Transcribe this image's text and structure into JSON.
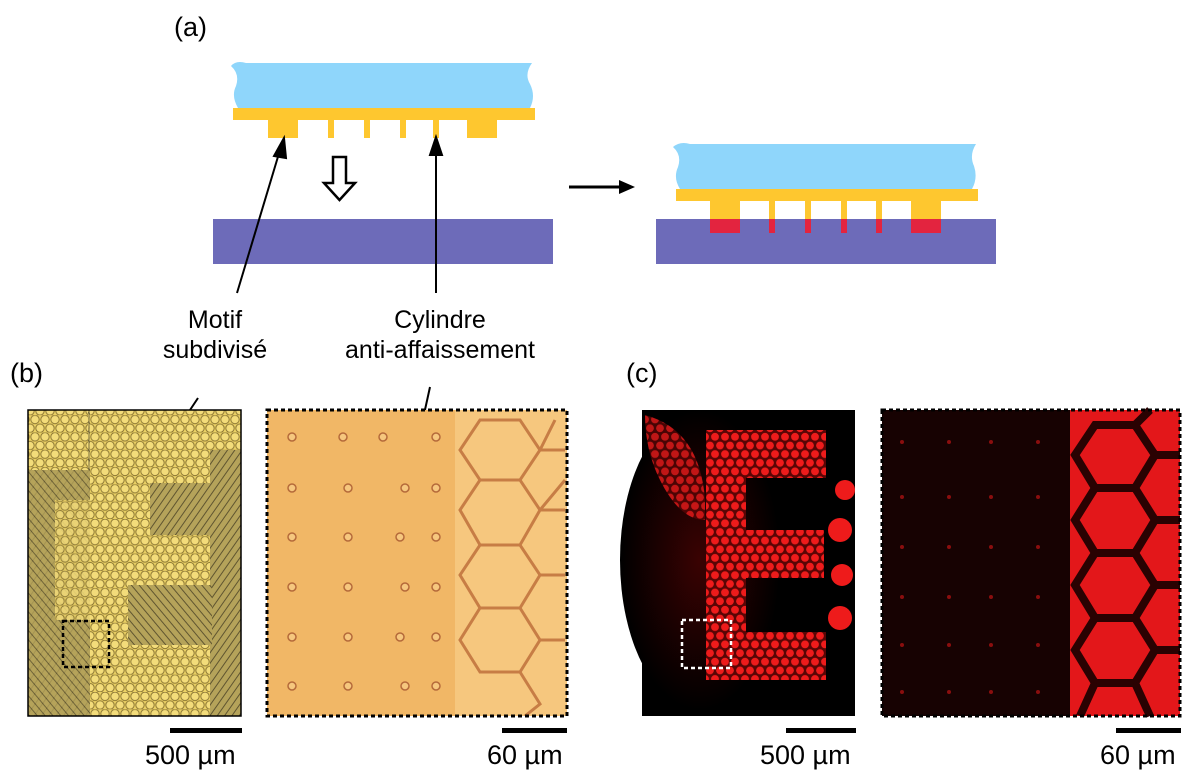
{
  "panels": {
    "a": {
      "label": "(a)"
    },
    "b": {
      "label": "(b)"
    },
    "c": {
      "label": "(c)"
    }
  },
  "annotations": {
    "motif": {
      "line1": "Motif",
      "line2": "subdivisé"
    },
    "cylindre": {
      "line1": "Cylindre",
      "line2": "anti-affaissement"
    }
  },
  "scalebars": {
    "b_left": "500 µm",
    "b_right": "60 µm",
    "c_left": "500 µm",
    "c_right": "60 µm"
  },
  "colors": {
    "glass": "#8fd6fb",
    "pdms": "#fec72f",
    "substrate": "#6d6bb9",
    "ink": "#e3243f",
    "bright_field_bg": "#d8b64e",
    "bright_field_zoom": "#f1b766",
    "fluorescence": "#e3171a"
  }
}
